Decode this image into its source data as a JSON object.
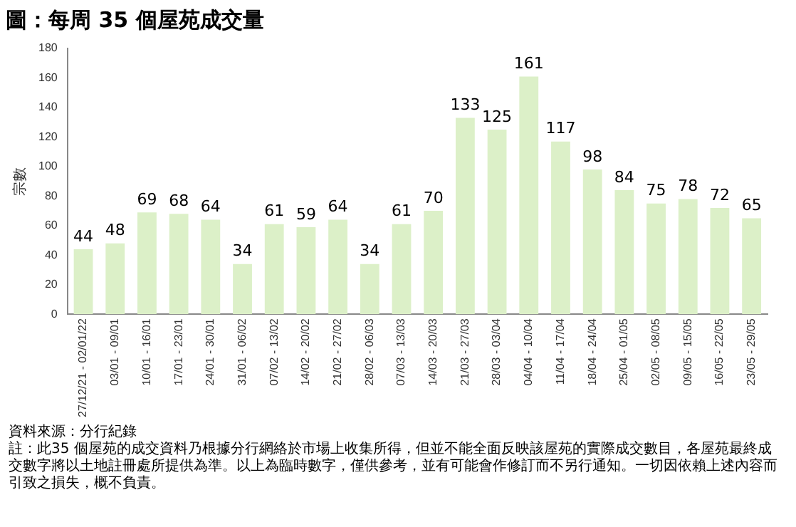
{
  "chart_data": {
    "type": "bar",
    "title": "圖：每周 35 個屋苑成交量",
    "ylabel": "宗數",
    "categories": [
      "27/12/21 - 02/01/22",
      "03/01 - 09/01",
      "10/01 - 16/01",
      "17/01 - 23/01",
      "24/01 - 30/01",
      "31/01 - 06/02",
      "07/02 - 13/02",
      "14/02 - 20/02",
      "21/02 - 27/02",
      "28/02 - 06/03",
      "07/03 - 13/03",
      "14/03 - 20/03",
      "21/03 - 27/03",
      "28/03 - 03/04",
      "04/04 - 10/04",
      "11/04 - 17/04",
      "18/04 - 24/04",
      "25/04 - 01/05",
      "02/05 - 08/05",
      "09/05 - 15/05",
      "16/05 - 22/05",
      "23/05 - 29/05"
    ],
    "values": [
      44,
      48,
      69,
      68,
      64,
      34,
      61,
      59,
      64,
      34,
      61,
      70,
      133,
      125,
      161,
      117,
      98,
      84,
      75,
      78,
      72,
      65
    ],
    "color": "#dcf0c8",
    "ylim": [
      0,
      180
    ],
    "yticks": [
      0,
      20,
      40,
      60,
      80,
      100,
      120,
      140,
      160,
      180
    ],
    "grid": false,
    "data_labels": true,
    "annotations": [
      "資料來源：分行紀錄",
      "註：此35 個屋苑的成交資料乃根據分行網絡於市場上收集所得，但並不能全面反映該屋苑的實際成交數目，各屋苑最終成交數字將以土地註冊處所提供為準。以上為臨時數字，僅供參考，並有可能會作修訂而不另行通知。一切因依賴上述內容而引致之損失，概不負責。"
    ]
  }
}
